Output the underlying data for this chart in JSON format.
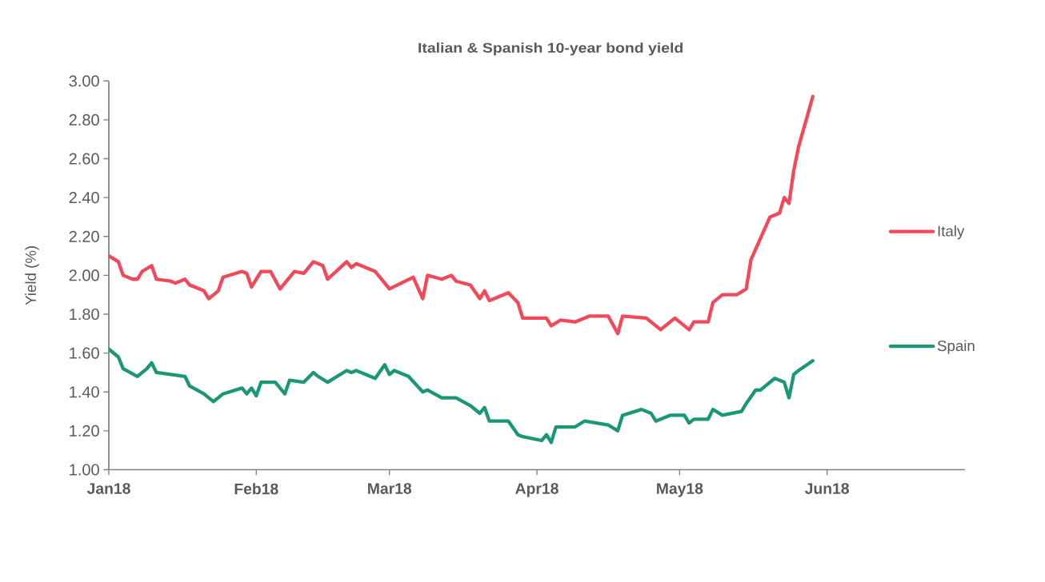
{
  "chart_data": {
    "type": "line",
    "title": "Italian & Spanish 10-year bond yield",
    "ylabel": "Yield (%)",
    "xlim": [
      "2018-01-01",
      "2018-06-30"
    ],
    "xticks": [
      {
        "value": "2018-01-01",
        "label": "Jan18"
      },
      {
        "value": "2018-02-01",
        "label": "Feb18"
      },
      {
        "value": "2018-03-01",
        "label": "Mar18"
      },
      {
        "value": "2018-04-01",
        "label": "Apr18"
      },
      {
        "value": "2018-05-01",
        "label": "May18"
      },
      {
        "value": "2018-06-01",
        "label": "Jun18"
      }
    ],
    "ylim": [
      1,
      3
    ],
    "yticks": [
      {
        "value": 1,
        "label": "1.00"
      },
      {
        "value": 1.2,
        "label": "1.20"
      },
      {
        "value": 1.4,
        "label": "1.40"
      },
      {
        "value": 1.6,
        "label": "1.60"
      },
      {
        "value": 1.8,
        "label": "1.80"
      },
      {
        "value": 2,
        "label": "2.00"
      },
      {
        "value": 2.2,
        "label": "2.20"
      },
      {
        "value": 2.4,
        "label": "2.40"
      },
      {
        "value": 2.6,
        "label": "2.60"
      },
      {
        "value": 2.8,
        "label": "2.80"
      },
      {
        "value": 3,
        "label": "3.00"
      }
    ],
    "legend": "right",
    "marker": "none",
    "line_style": "solid",
    "series": [
      {
        "name": "Italy",
        "color": "#f4485a",
        "x": [
          "2018-01-01",
          "2018-01-03",
          "2018-01-04",
          "2018-01-06",
          "2018-01-07",
          "2018-01-08",
          "2018-01-10",
          "2018-01-11",
          "2018-01-14",
          "2018-01-15",
          "2018-01-17",
          "2018-01-18",
          "2018-01-21",
          "2018-01-22",
          "2018-01-24",
          "2018-01-25",
          "2018-01-29",
          "2018-01-30",
          "2018-01-31",
          "2018-02-02",
          "2018-02-04",
          "2018-02-06",
          "2018-02-09",
          "2018-02-11",
          "2018-02-13",
          "2018-02-15",
          "2018-02-16",
          "2018-02-20",
          "2018-02-21",
          "2018-02-22",
          "2018-02-26",
          "2018-03-01",
          "2018-03-06",
          "2018-03-08",
          "2018-03-09",
          "2018-03-12",
          "2018-03-14",
          "2018-03-15",
          "2018-03-18",
          "2018-03-20",
          "2018-03-21",
          "2018-03-22",
          "2018-03-26",
          "2018-03-28",
          "2018-03-29",
          "2018-04-03",
          "2018-04-04",
          "2018-04-06",
          "2018-04-09",
          "2018-04-12",
          "2018-04-16",
          "2018-04-18",
          "2018-04-19",
          "2018-04-24",
          "2018-04-27",
          "2018-04-30",
          "2018-05-03",
          "2018-05-04",
          "2018-05-07",
          "2018-05-08",
          "2018-05-10",
          "2018-05-13",
          "2018-05-15",
          "2018-05-16",
          "2018-05-18",
          "2018-05-20",
          "2018-05-22",
          "2018-05-23",
          "2018-05-24",
          "2018-05-25",
          "2018-05-26",
          "2018-05-29"
        ],
        "values": [
          2.1,
          2.07,
          2.0,
          1.98,
          1.98,
          2.02,
          2.05,
          1.98,
          1.97,
          1.96,
          1.98,
          1.95,
          1.92,
          1.88,
          1.92,
          1.99,
          2.02,
          2.01,
          1.94,
          2.02,
          2.02,
          1.93,
          2.02,
          2.01,
          2.07,
          2.05,
          1.98,
          2.07,
          2.04,
          2.06,
          2.02,
          1.93,
          1.99,
          1.88,
          2.0,
          1.98,
          2.0,
          1.97,
          1.95,
          1.88,
          1.92,
          1.87,
          1.91,
          1.86,
          1.78,
          1.78,
          1.74,
          1.77,
          1.76,
          1.79,
          1.79,
          1.7,
          1.79,
          1.78,
          1.72,
          1.78,
          1.72,
          1.76,
          1.76,
          1.86,
          1.9,
          1.9,
          1.93,
          2.08,
          2.19,
          2.3,
          2.32,
          2.4,
          2.37,
          2.54,
          2.66,
          2.92
        ]
      },
      {
        "name": "Spain",
        "color": "#1a9876",
        "x": [
          "2018-01-01",
          "2018-01-03",
          "2018-01-04",
          "2018-01-07",
          "2018-01-09",
          "2018-01-10",
          "2018-01-11",
          "2018-01-17",
          "2018-01-18",
          "2018-01-21",
          "2018-01-23",
          "2018-01-25",
          "2018-01-29",
          "2018-01-30",
          "2018-01-31",
          "2018-02-01",
          "2018-02-02",
          "2018-02-05",
          "2018-02-07",
          "2018-02-08",
          "2018-02-11",
          "2018-02-13",
          "2018-02-14",
          "2018-02-16",
          "2018-02-20",
          "2018-02-21",
          "2018-02-22",
          "2018-02-26",
          "2018-02-28",
          "2018-03-01",
          "2018-03-02",
          "2018-03-05",
          "2018-03-08",
          "2018-03-09",
          "2018-03-12",
          "2018-03-15",
          "2018-03-18",
          "2018-03-20",
          "2018-03-21",
          "2018-03-22",
          "2018-03-26",
          "2018-03-28",
          "2018-03-29",
          "2018-04-02",
          "2018-04-03",
          "2018-04-04",
          "2018-04-05",
          "2018-04-09",
          "2018-04-11",
          "2018-04-16",
          "2018-04-18",
          "2018-04-19",
          "2018-04-23",
          "2018-04-25",
          "2018-04-26",
          "2018-04-29",
          "2018-05-02",
          "2018-05-03",
          "2018-05-04",
          "2018-05-07",
          "2018-05-08",
          "2018-05-10",
          "2018-05-14",
          "2018-05-15",
          "2018-05-17",
          "2018-05-18",
          "2018-05-21",
          "2018-05-23",
          "2018-05-24",
          "2018-05-25",
          "2018-05-26",
          "2018-05-29"
        ],
        "values": [
          1.62,
          1.58,
          1.52,
          1.48,
          1.52,
          1.55,
          1.5,
          1.48,
          1.43,
          1.39,
          1.35,
          1.39,
          1.42,
          1.39,
          1.42,
          1.38,
          1.45,
          1.45,
          1.39,
          1.46,
          1.45,
          1.5,
          1.48,
          1.45,
          1.51,
          1.5,
          1.51,
          1.47,
          1.54,
          1.49,
          1.51,
          1.48,
          1.4,
          1.41,
          1.37,
          1.37,
          1.33,
          1.29,
          1.32,
          1.25,
          1.25,
          1.18,
          1.17,
          1.15,
          1.18,
          1.14,
          1.22,
          1.22,
          1.25,
          1.23,
          1.2,
          1.28,
          1.31,
          1.29,
          1.25,
          1.28,
          1.28,
          1.24,
          1.26,
          1.26,
          1.31,
          1.28,
          1.3,
          1.34,
          1.41,
          1.41,
          1.47,
          1.45,
          1.37,
          1.49,
          1.51,
          1.56
        ]
      }
    ]
  }
}
